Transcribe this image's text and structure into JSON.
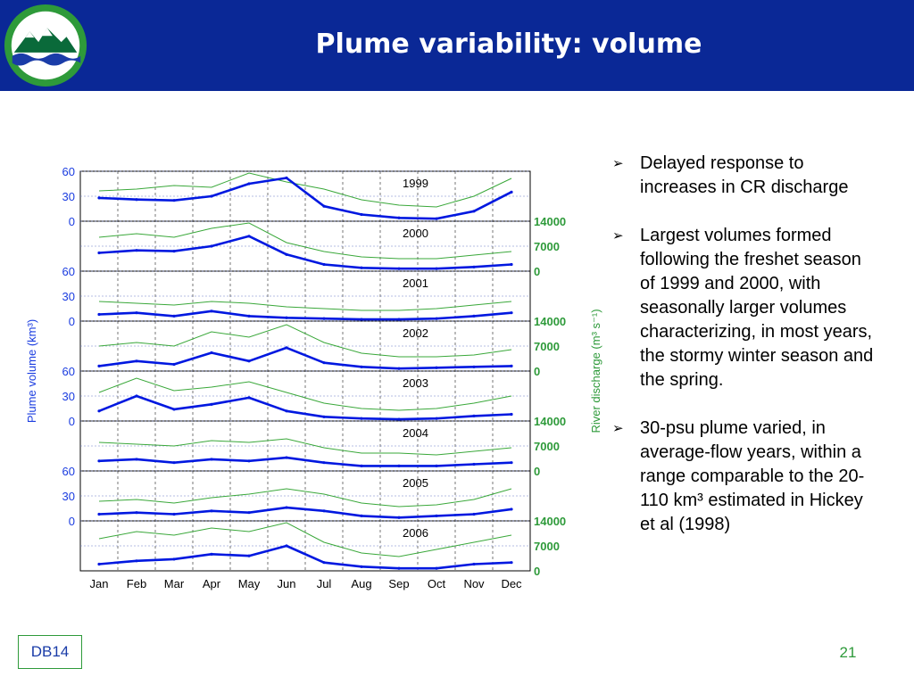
{
  "slide": {
    "title": "Plume variability: volume",
    "footer_label": "DB14",
    "page_number": "21",
    "bullets": [
      "Delayed response to increases in CR discharge",
      "Largest volumes formed following the freshet season of 1999 and 2000, with seasonally larger volumes characterizing, in most years, the stormy winter season and the spring.",
      "30-psu plume varied, in average-flow years, within a range comparable to the 20-110 km³ estimated in Hickey et al (1998)"
    ]
  },
  "colors": {
    "header_bg": "#0a2896",
    "volume_line": "#0018e0",
    "discharge_line": "#3aa83a",
    "left_axis_text": "#1a3ce0",
    "right_axis_text": "#2e9a3a"
  },
  "chart_data": {
    "type": "line",
    "ylabel": "Plume volume (km³)",
    "ylabel_right": "River discharge (m³ s⁻¹)",
    "months": [
      "Jan",
      "Feb",
      "Mar",
      "Apr",
      "May",
      "Jun",
      "Jul",
      "Aug",
      "Sep",
      "Oct",
      "Nov",
      "Dec"
    ],
    "volume_ylim": [
      0,
      60
    ],
    "volume_ticks": [
      60,
      30,
      0
    ],
    "discharge_ylim": [
      0,
      14000
    ],
    "discharge_ticks": [
      14000,
      7000,
      0
    ],
    "series": [
      {
        "year": "1999",
        "volume": [
          28,
          26,
          25,
          30,
          45,
          52,
          18,
          8,
          4,
          3,
          12,
          35
        ],
        "discharge": [
          8500,
          9000,
          10000,
          9500,
          13500,
          11000,
          9000,
          6000,
          4500,
          4000,
          7000,
          12000
        ]
      },
      {
        "year": "2000",
        "volume": [
          22,
          25,
          24,
          30,
          42,
          20,
          8,
          4,
          3,
          3,
          5,
          8
        ],
        "discharge": [
          9500,
          10500,
          9500,
          12000,
          13500,
          8000,
          5500,
          4000,
          3500,
          3500,
          4500,
          5500
        ]
      },
      {
        "year": "2001",
        "volume": [
          8,
          10,
          6,
          12,
          6,
          4,
          3,
          2,
          2,
          3,
          6,
          10
        ],
        "discharge": [
          5500,
          5000,
          4500,
          5500,
          5000,
          4000,
          3500,
          3000,
          3000,
          3500,
          4500,
          5500
        ]
      },
      {
        "year": "2002",
        "volume": [
          6,
          12,
          8,
          22,
          12,
          28,
          10,
          5,
          3,
          4,
          5,
          6
        ],
        "discharge": [
          7000,
          8000,
          7000,
          11000,
          9500,
          13000,
          8000,
          5000,
          4000,
          4000,
          4500,
          6000
        ]
      },
      {
        "year": "2003",
        "volume": [
          12,
          30,
          14,
          20,
          28,
          12,
          5,
          3,
          2,
          3,
          6,
          8
        ],
        "discharge": [
          8000,
          12000,
          8500,
          9500,
          11000,
          8000,
          5000,
          3500,
          3000,
          3500,
          5000,
          7000
        ]
      },
      {
        "year": "2004",
        "volume": [
          12,
          14,
          10,
          14,
          12,
          16,
          10,
          6,
          6,
          6,
          8,
          10
        ],
        "discharge": [
          8000,
          7500,
          7000,
          8500,
          8000,
          9000,
          6500,
          5000,
          5000,
          4500,
          5500,
          6500
        ]
      },
      {
        "year": "2005",
        "volume": [
          8,
          10,
          8,
          12,
          10,
          16,
          12,
          6,
          4,
          6,
          8,
          14
        ],
        "discharge": [
          5500,
          6000,
          5000,
          6500,
          7500,
          9000,
          7500,
          5000,
          4000,
          4500,
          6000,
          9000
        ]
      },
      {
        "year": "2006",
        "volume": [
          8,
          12,
          14,
          20,
          18,
          30,
          10,
          5,
          3,
          3,
          8,
          10
        ],
        "discharge": [
          9000,
          11000,
          10000,
          12000,
          11000,
          13500,
          8000,
          5000,
          4000,
          6000,
          8000,
          10000
        ]
      }
    ]
  }
}
